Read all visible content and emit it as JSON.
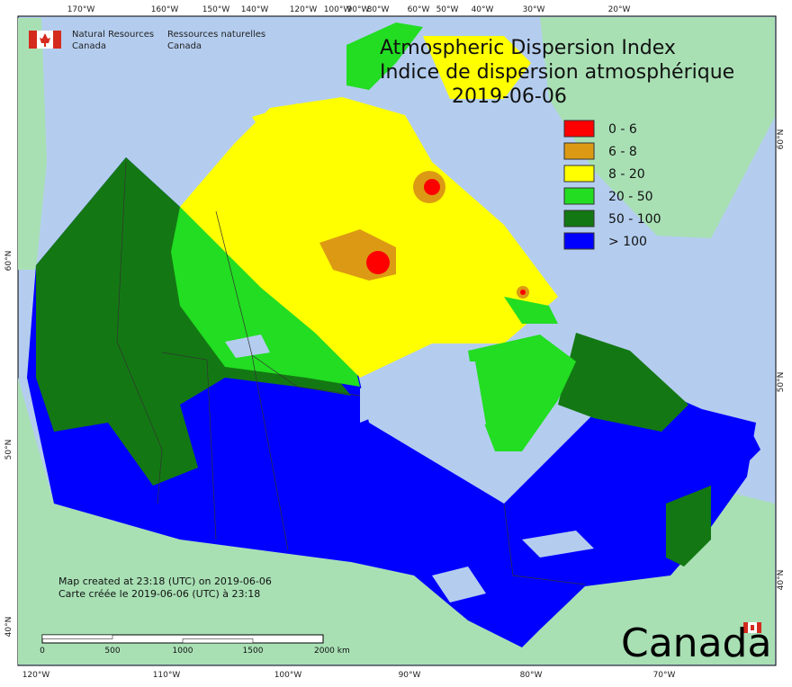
{
  "header": {
    "department_en": [
      "Natural Resources",
      "Canada"
    ],
    "department_fr": [
      "Ressources naturelles",
      "Canada"
    ]
  },
  "title": [
    "Atmospheric Dispersion Index",
    "Indice de dispersion atmosphérique"
  ],
  "date": "2019-06-06",
  "legend": [
    {
      "label": "0 - 6",
      "color": "#ff0000"
    },
    {
      "label": "6 - 8",
      "color": "#dc9a14"
    },
    {
      "label": "8 - 20",
      "color": "#ffff00"
    },
    {
      "label": "20 - 50",
      "color": "#22dd22"
    },
    {
      "label": "50 - 100",
      "color": "#137813"
    },
    {
      "label": "> 100",
      "color": "#0000ff"
    }
  ],
  "graticule": {
    "top": [
      "170°W",
      "160°W",
      "150°W",
      "140°W",
      "120°W",
      "100°W",
      "90°W",
      "80°W",
      "60°W",
      "50°W",
      "40°W",
      "30°W",
      "20°W"
    ],
    "bottom": [
      "120°W",
      "110°W",
      "100°W",
      "90°W",
      "80°W",
      "70°W"
    ],
    "left": [
      "60°N",
      "50°N",
      "40°N"
    ],
    "right": [
      "60°N",
      "50°N",
      "40°N"
    ]
  },
  "footer": {
    "created_en": "Map created at 23:18 (UTC) on 2019-06-06",
    "created_fr": "Carte créée le 2019-06-06 (UTC) à 23:18"
  },
  "scale_bar": {
    "labels": [
      "0",
      "500",
      "1000",
      "1500",
      "2000 km"
    ]
  },
  "wordmark": "Canada"
}
